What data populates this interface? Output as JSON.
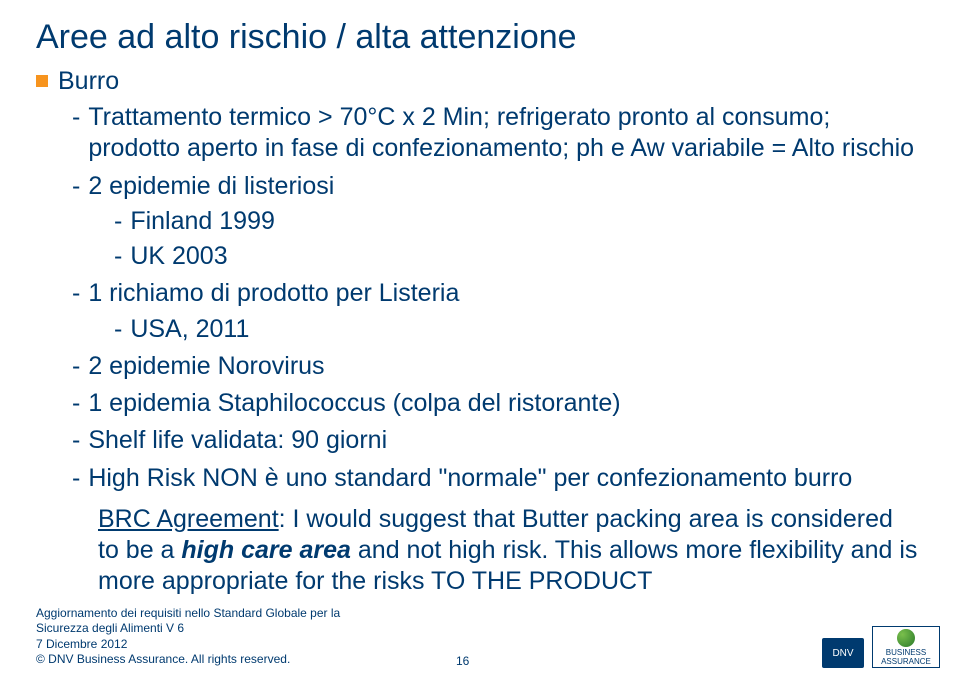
{
  "title": "Aree ad alto rischio / alta attenzione",
  "main": "Burro",
  "sub1": "Trattamento termico > 70°C x 2 Min; refrigerato pronto al consumo; prodotto aperto in fase di confezionamento; ph e Aw variabile = Alto rischio",
  "sub2": "2 epidemie di listeriosi",
  "sub2a": "Finland 1999",
  "sub2b": "UK 2003",
  "sub3": "1 richiamo di prodotto per Listeria",
  "sub3a": "USA, 2011",
  "sub4": "2 epidemie Norovirus",
  "sub5": "1 epidemia Staphilococcus (colpa del ristorante)",
  "sub6": "Shelf life validata: 90 giorni",
  "sub7": "High Risk NON è uno standard \"normale\" per confezionamento burro",
  "brc_label": "BRC Agreement",
  "brc_body1": ": I would suggest that Butter packing area is considered to be a ",
  "brc_emph": "high care area",
  "brc_body2": " and not high risk. This allows more flexibility and is more appropriate for the risks TO THE PRODUCT",
  "footer1": "Aggiornamento dei requisiti nello Standard Globale per la",
  "footer2": "Sicurezza degli Alimenti V 6",
  "footer3": "7 Dicembre 2012",
  "footer4": "© DNV Business Assurance. All rights reserved.",
  "page": "16",
  "logo_dnv": "DNV",
  "logo_ba1": "BUSINESS",
  "logo_ba2": "ASSURANCE"
}
